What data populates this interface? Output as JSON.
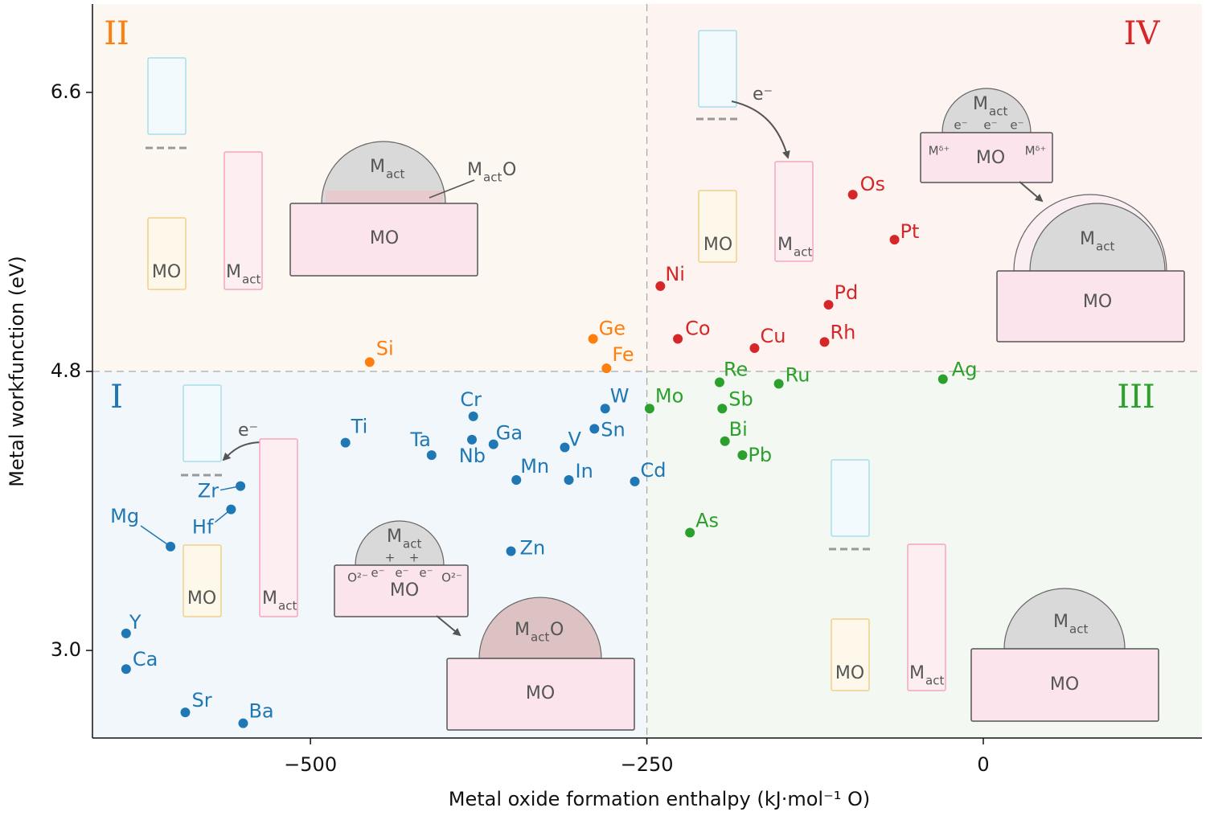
{
  "chart_data": {
    "type": "scatter",
    "x_label": "Metal oxide formation enthalpy (kJ·mol⁻¹ O)",
    "y_label": "Metal workfunction (eV)",
    "xlim": [
      -662,
      162.5
    ],
    "ylim": [
      2.435,
      7.17
    ],
    "xticks": [
      {
        "value": -500,
        "label": "−500"
      },
      {
        "value": -250,
        "label": "−250"
      },
      {
        "value": 0,
        "label": "0"
      }
    ],
    "yticks": [
      {
        "value": 3,
        "label": "3.0"
      },
      4.8,
      6.6
    ],
    "quadrant_x": -250,
    "quadrant_y": 4.8,
    "quadrant_labels": [
      "I",
      "II",
      "III",
      "IV"
    ],
    "schematic": {
      "oxide": "MO",
      "metal": "M",
      "sub": "act",
      "oxygen": "O",
      "electron": "e⁻",
      "hole": "+",
      "oxygen_ion": "O²⁻",
      "metal_ion": "Mᵟ⁺"
    },
    "series": [
      {
        "color": "#ff7f0e",
        "labels": [
          "Si",
          "Ge",
          "Fe"
        ],
        "x": [
          -456,
          -290,
          -280
        ],
        "values": [
          4.86,
          5.01,
          4.82
        ]
      },
      {
        "color": "#1f77b4",
        "labels": [
          "Ti",
          "Cr",
          "Nb",
          "Ga",
          "Ta",
          "W",
          "Sn",
          "V",
          "Mn",
          "In",
          "Cd",
          "Zr",
          "Hf",
          "Mg",
          "Zn",
          "Y",
          "Ca",
          "Sr",
          "Ba"
        ],
        "x": [
          -474,
          -379,
          -380,
          -364,
          -410,
          -281,
          -289,
          -311,
          -347,
          -308,
          -259,
          -552,
          -559,
          -604,
          -351,
          -637,
          -637,
          -593,
          -550
        ],
        "values": [
          4.34,
          4.51,
          4.36,
          4.33,
          4.26,
          4.56,
          4.43,
          4.31,
          4.1,
          4.1,
          4.09,
          4.06,
          3.91,
          3.67,
          3.64,
          3.11,
          2.88,
          2.6,
          2.53
        ]
      },
      {
        "color": "#2ca02c",
        "labels": [
          "Mo",
          "Re",
          "Sb",
          "Bi",
          "Pb",
          "Ru",
          "As",
          "Ag"
        ],
        "x": [
          -248,
          -196,
          -194,
          -192,
          -179,
          -152,
          -218,
          -30
        ],
        "values": [
          4.56,
          4.73,
          4.56,
          4.35,
          4.26,
          4.72,
          3.76,
          4.75
        ]
      },
      {
        "color": "#d62728",
        "labels": [
          "Ni",
          "Co",
          "Cu",
          "Os",
          "Pt",
          "Pd",
          "Rh"
        ],
        "x": [
          -240,
          -227,
          -170,
          -97,
          -66,
          -115,
          -118
        ],
        "values": [
          5.35,
          5.01,
          4.95,
          5.94,
          5.65,
          5.23,
          4.99
        ]
      }
    ]
  }
}
